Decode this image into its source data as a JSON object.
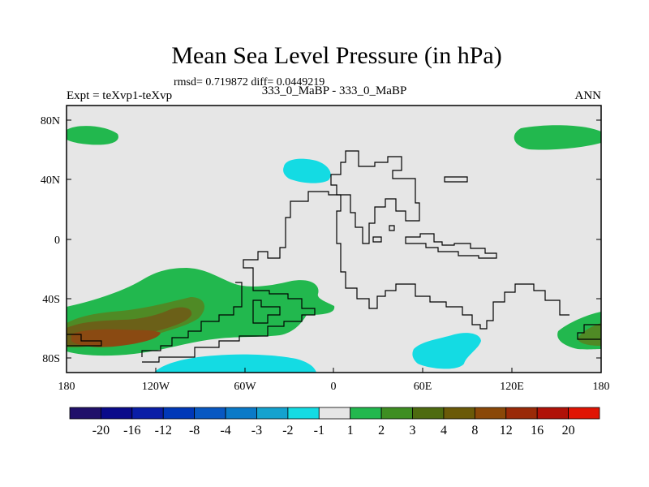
{
  "title": "Mean Sea Level Pressure (in hPa)",
  "stats": "rmsd= 0.719872 diff= 0.0449219",
  "subtitle": "333_0_MaBP - 333_0_MaBP",
  "experiment": "Expt = teXvp1-teXvp",
  "season": "ANN",
  "lat_ticks": [
    "80N",
    "40N",
    "0",
    "40S",
    "80S"
  ],
  "lon_ticks": [
    "180",
    "120W",
    "60W",
    "0",
    "60E",
    "120E",
    "180"
  ],
  "colorbar": {
    "labels": [
      "-20",
      "-16",
      "-12",
      "-8",
      "-4",
      "-3",
      "-2",
      "-1",
      "1",
      "2",
      "3",
      "4",
      "8",
      "12",
      "16",
      "20"
    ],
    "colors": [
      "#20106a",
      "#0a0a8a",
      "#0a1ea6",
      "#0038b8",
      "#0858c2",
      "#0a7ac8",
      "#14a2cf",
      "#14dbe3",
      "#e6e6e6",
      "#22b84e",
      "#3e8e22",
      "#4e6b10",
      "#6b5a08",
      "#8a4808",
      "#9a2a08",
      "#b01208",
      "#e01404"
    ]
  },
  "colors": {
    "land_bg": "#e6e6e6",
    "positive_1": "#22b84e",
    "positive_2": "#4e7f2a",
    "positive_3": "#7a5a1a",
    "positive_4": "#8a4412",
    "negative_1": "#14dbe3",
    "coast": "#000000"
  }
}
